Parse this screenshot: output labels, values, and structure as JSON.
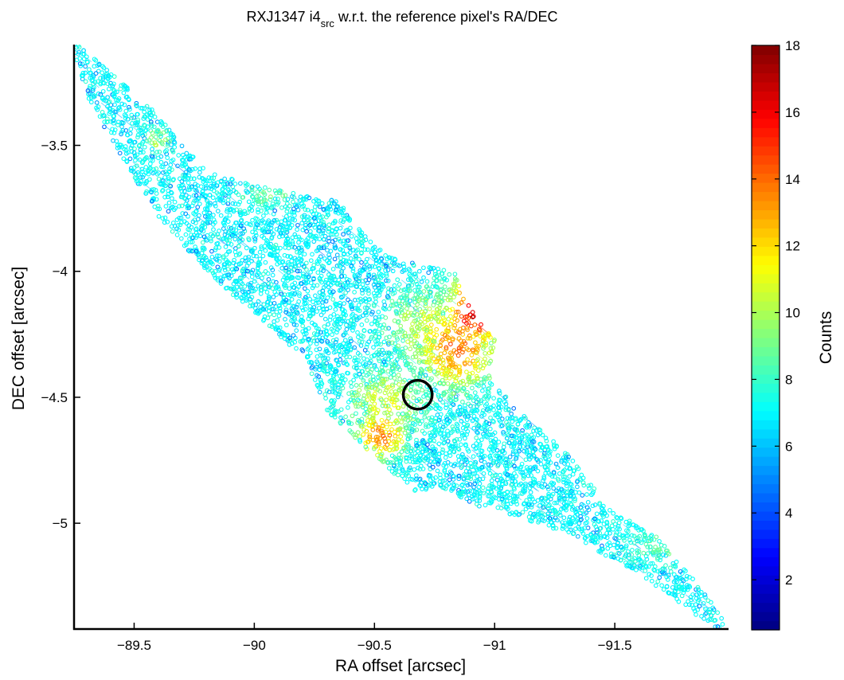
{
  "chart_data": {
    "type": "scatter",
    "title": {
      "main": "RXJ1347 i4",
      "sub": "src",
      "rest": " w.r.t. the reference pixel's RA/DEC"
    },
    "xlabel": "RA offset [arcsec]",
    "ylabel": "DEC offset [arcsec]",
    "xlim": [
      -89.25,
      -91.97
    ],
    "ylim": [
      -3.1,
      -5.42
    ],
    "x_reversed": true,
    "y_reversed": true,
    "xticks": [
      -89.5,
      -90,
      -90.5,
      -91,
      -91.5
    ],
    "yticks": [
      -3.5,
      -4,
      -4.5,
      -5
    ],
    "xtick_labels": [
      "−89.5",
      "−90",
      "−90.5",
      "−91",
      "−91.5"
    ],
    "ytick_labels": [
      "−3.5",
      "−4",
      "−4.5",
      "−5"
    ],
    "colormap": "jet",
    "colorbar": {
      "label": "Counts",
      "range": [
        0.5,
        18
      ],
      "ticks": [
        2,
        4,
        6,
        8,
        10,
        12,
        14,
        16,
        18
      ],
      "tick_labels": [
        "2",
        "4",
        "6",
        "8",
        "10",
        "12",
        "14",
        "16",
        "18"
      ]
    },
    "footprint": [
      [
        -89.27,
        -3.1
      ],
      [
        -89.6,
        -3.38
      ],
      [
        -89.68,
        -3.48
      ],
      [
        -89.8,
        -3.6
      ],
      [
        -90.0,
        -3.66
      ],
      [
        -90.35,
        -3.72
      ],
      [
        -90.5,
        -3.9
      ],
      [
        -90.58,
        -3.95
      ],
      [
        -90.83,
        -4.0
      ],
      [
        -90.87,
        -4.08
      ],
      [
        -90.9,
        -4.15
      ],
      [
        -91.0,
        -4.27
      ],
      [
        -90.98,
        -4.43
      ],
      [
        -91.12,
        -4.57
      ],
      [
        -91.3,
        -4.72
      ],
      [
        -91.42,
        -4.87
      ],
      [
        -91.45,
        -4.93
      ],
      [
        -91.67,
        -5.05
      ],
      [
        -91.8,
        -5.19
      ],
      [
        -91.97,
        -5.4
      ],
      [
        -91.92,
        -5.42
      ],
      [
        -91.6,
        -5.2
      ],
      [
        -91.27,
        -5.03
      ],
      [
        -90.95,
        -4.94
      ],
      [
        -90.8,
        -4.87
      ],
      [
        -90.68,
        -4.88
      ],
      [
        -90.5,
        -4.74
      ],
      [
        -90.3,
        -4.55
      ],
      [
        -90.25,
        -4.43
      ],
      [
        -90.18,
        -4.32
      ],
      [
        -89.98,
        -4.15
      ],
      [
        -89.8,
        -4.0
      ],
      [
        -89.6,
        -3.78
      ],
      [
        -89.45,
        -3.55
      ],
      [
        -89.3,
        -3.3
      ],
      [
        -89.25,
        -3.12
      ]
    ],
    "background_counts": 6.2,
    "hot_spots": [
      {
        "x": -90.92,
        "y": -4.16,
        "counts": 17,
        "spread_x": 0.12,
        "spread_y": 0.14
      },
      {
        "x": -90.84,
        "y": -4.3,
        "counts": 14,
        "spread_x": 0.17,
        "spread_y": 0.17
      },
      {
        "x": -90.74,
        "y": -4.22,
        "counts": 11,
        "spread_x": 0.22,
        "spread_y": 0.15
      },
      {
        "x": -90.53,
        "y": -4.65,
        "counts": 14,
        "spread_x": 0.11,
        "spread_y": 0.1
      },
      {
        "x": -90.55,
        "y": -4.52,
        "counts": 11,
        "spread_x": 0.18,
        "spread_y": 0.14
      },
      {
        "x": -89.6,
        "y": -3.48,
        "counts": 10,
        "spread_x": 0.06,
        "spread_y": 0.05
      },
      {
        "x": -91.7,
        "y": -5.1,
        "counts": 8.5,
        "spread_x": 0.18,
        "spread_y": 0.08
      },
      {
        "x": -90.05,
        "y": -3.7,
        "counts": 9,
        "spread_x": 0.12,
        "spread_y": 0.05
      }
    ],
    "marker": {
      "x": -90.68,
      "y": -4.49,
      "radius": 0.06
    }
  }
}
